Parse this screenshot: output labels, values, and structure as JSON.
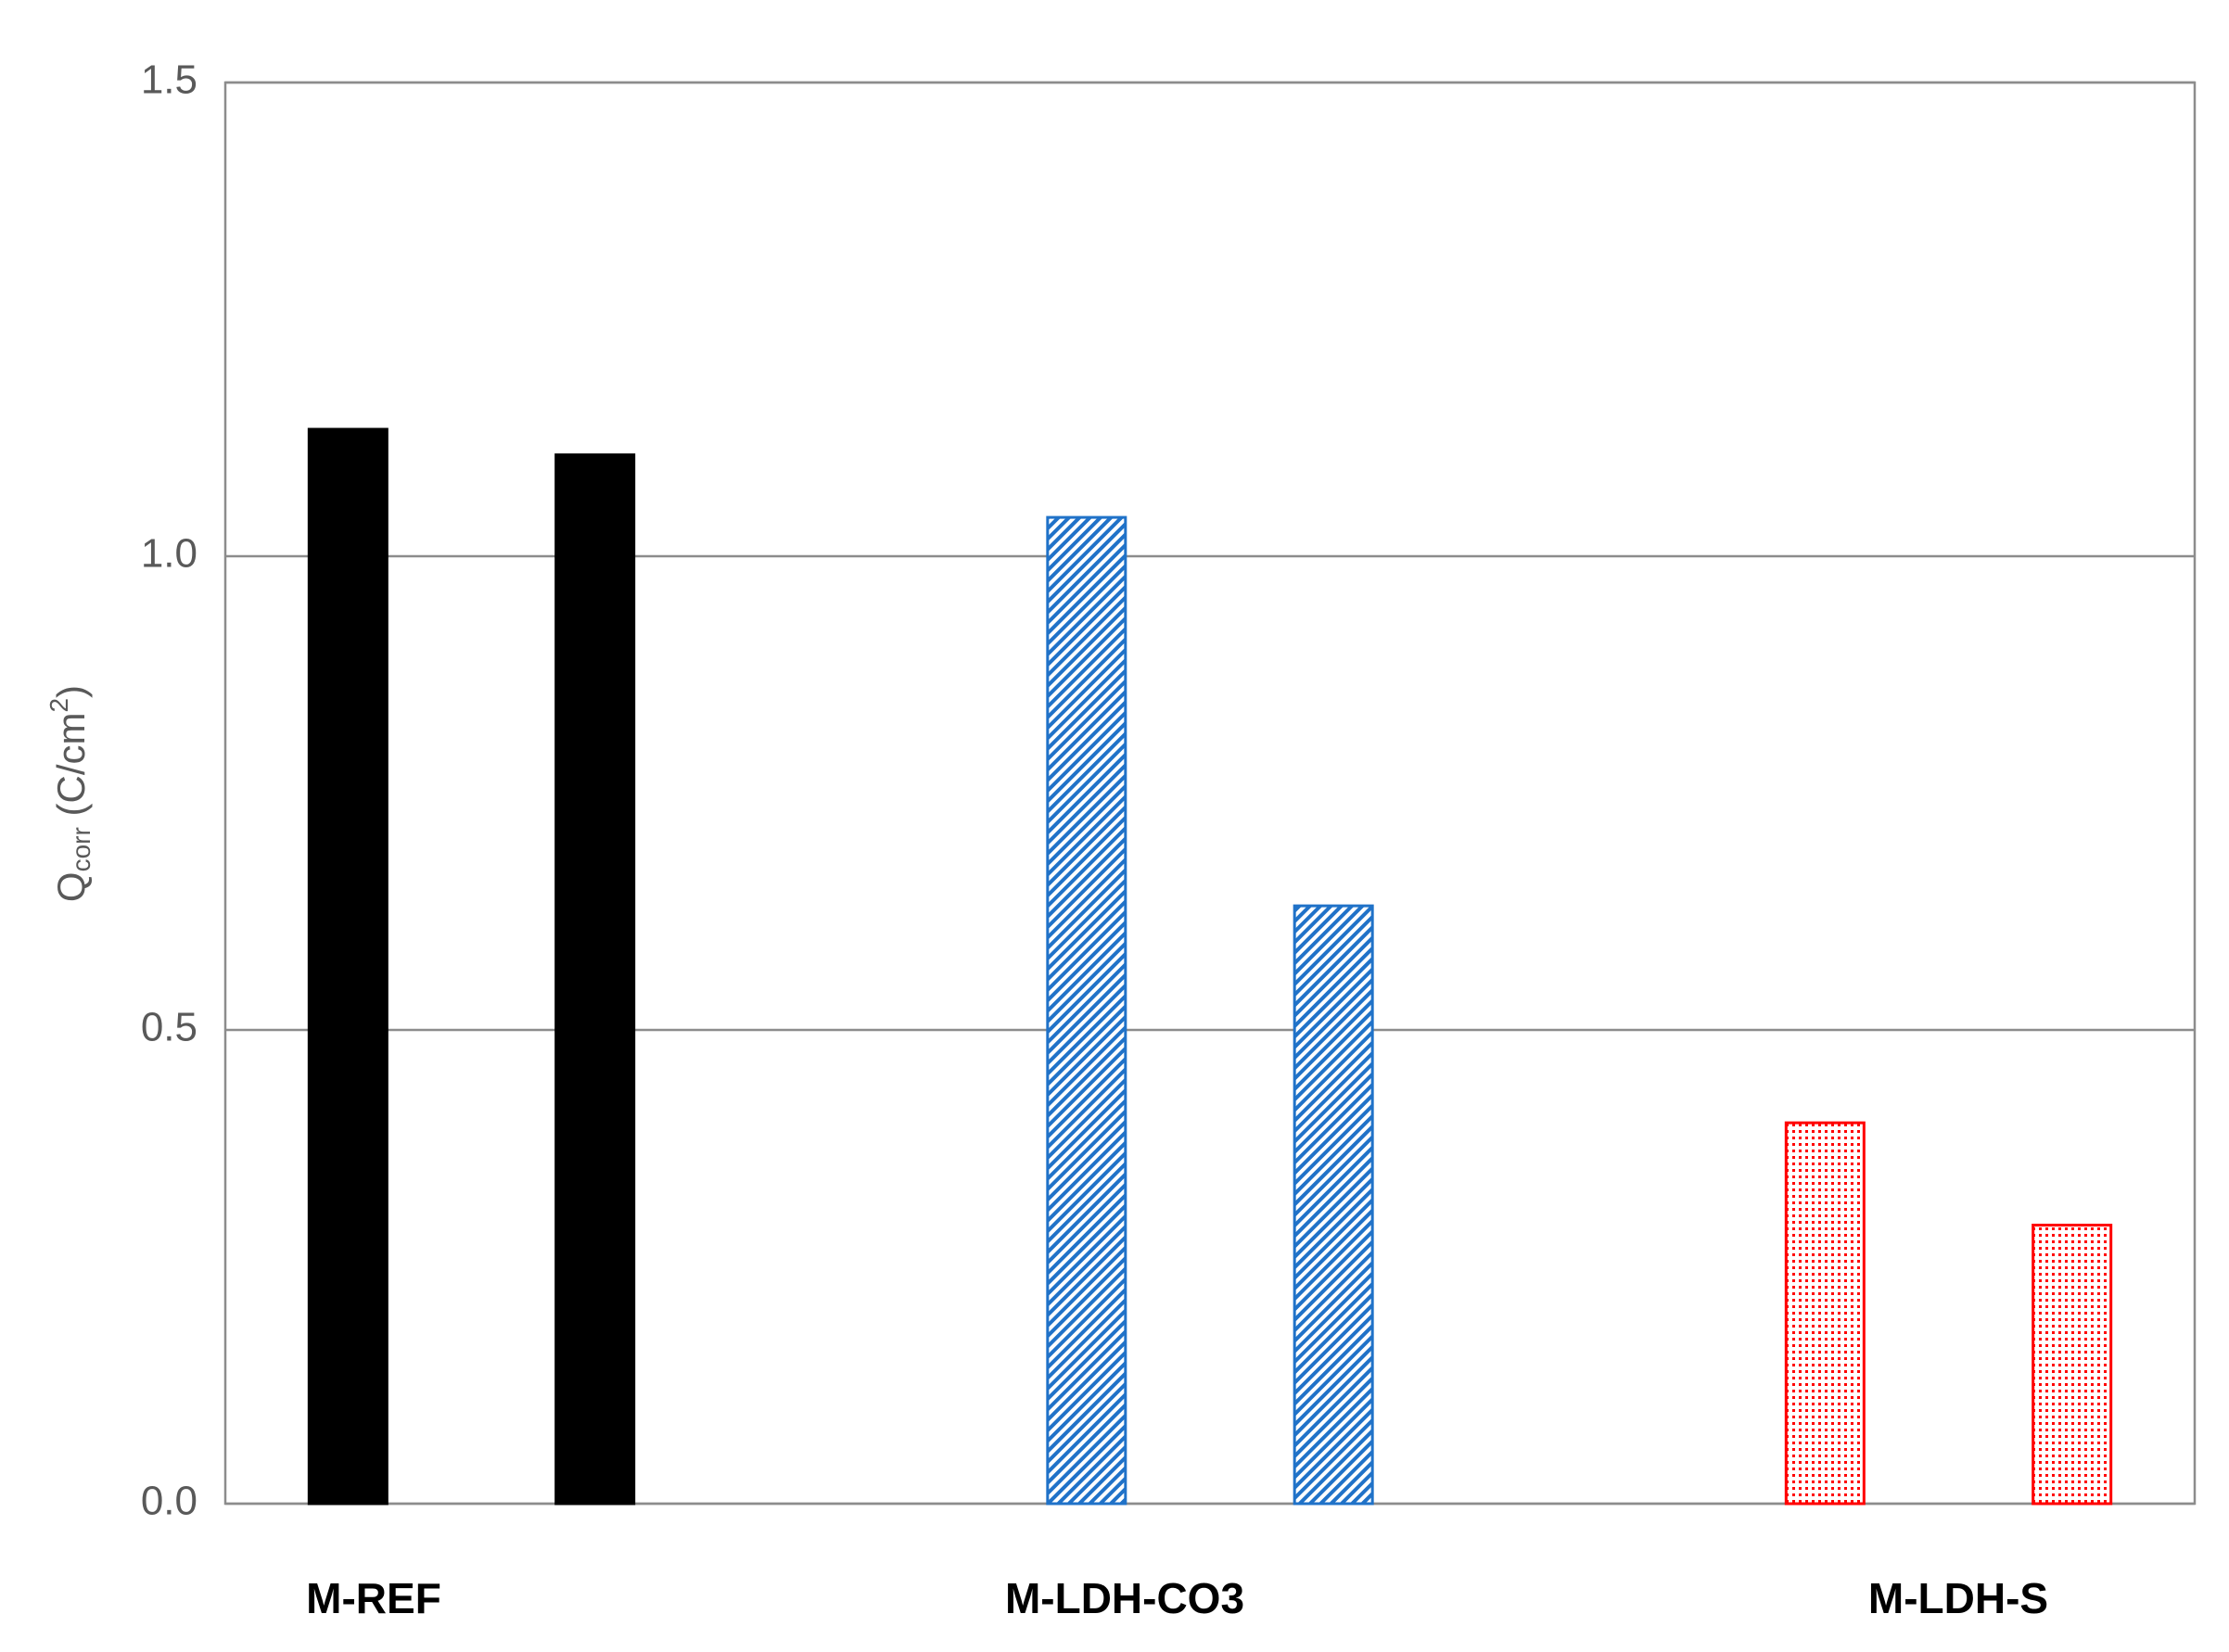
{
  "chart_data": {
    "type": "bar",
    "y_label": [
      "Q",
      "corr",
      " (C/cm",
      "2",
      ")"
    ],
    "categories": [
      "M-REF",
      "M-LDH-CO3",
      "M-LDH-S"
    ],
    "series": [
      {
        "values": [
          1.134,
          1.041,
          0.402
        ]
      },
      {
        "values": [
          1.107,
          0.631,
          0.294
        ]
      }
    ],
    "colors": [
      "#000000",
      "#2072c8",
      "#ff0000"
    ],
    "fills": [
      "solid",
      "hatch",
      "dots"
    ],
    "ylim": [
      0,
      1.5
    ],
    "yticks": [
      {
        "value": 0,
        "label": "0.0"
      },
      0.5,
      {
        "value": 1,
        "label": "1.0"
      },
      1.5
    ],
    "grid": true
  }
}
